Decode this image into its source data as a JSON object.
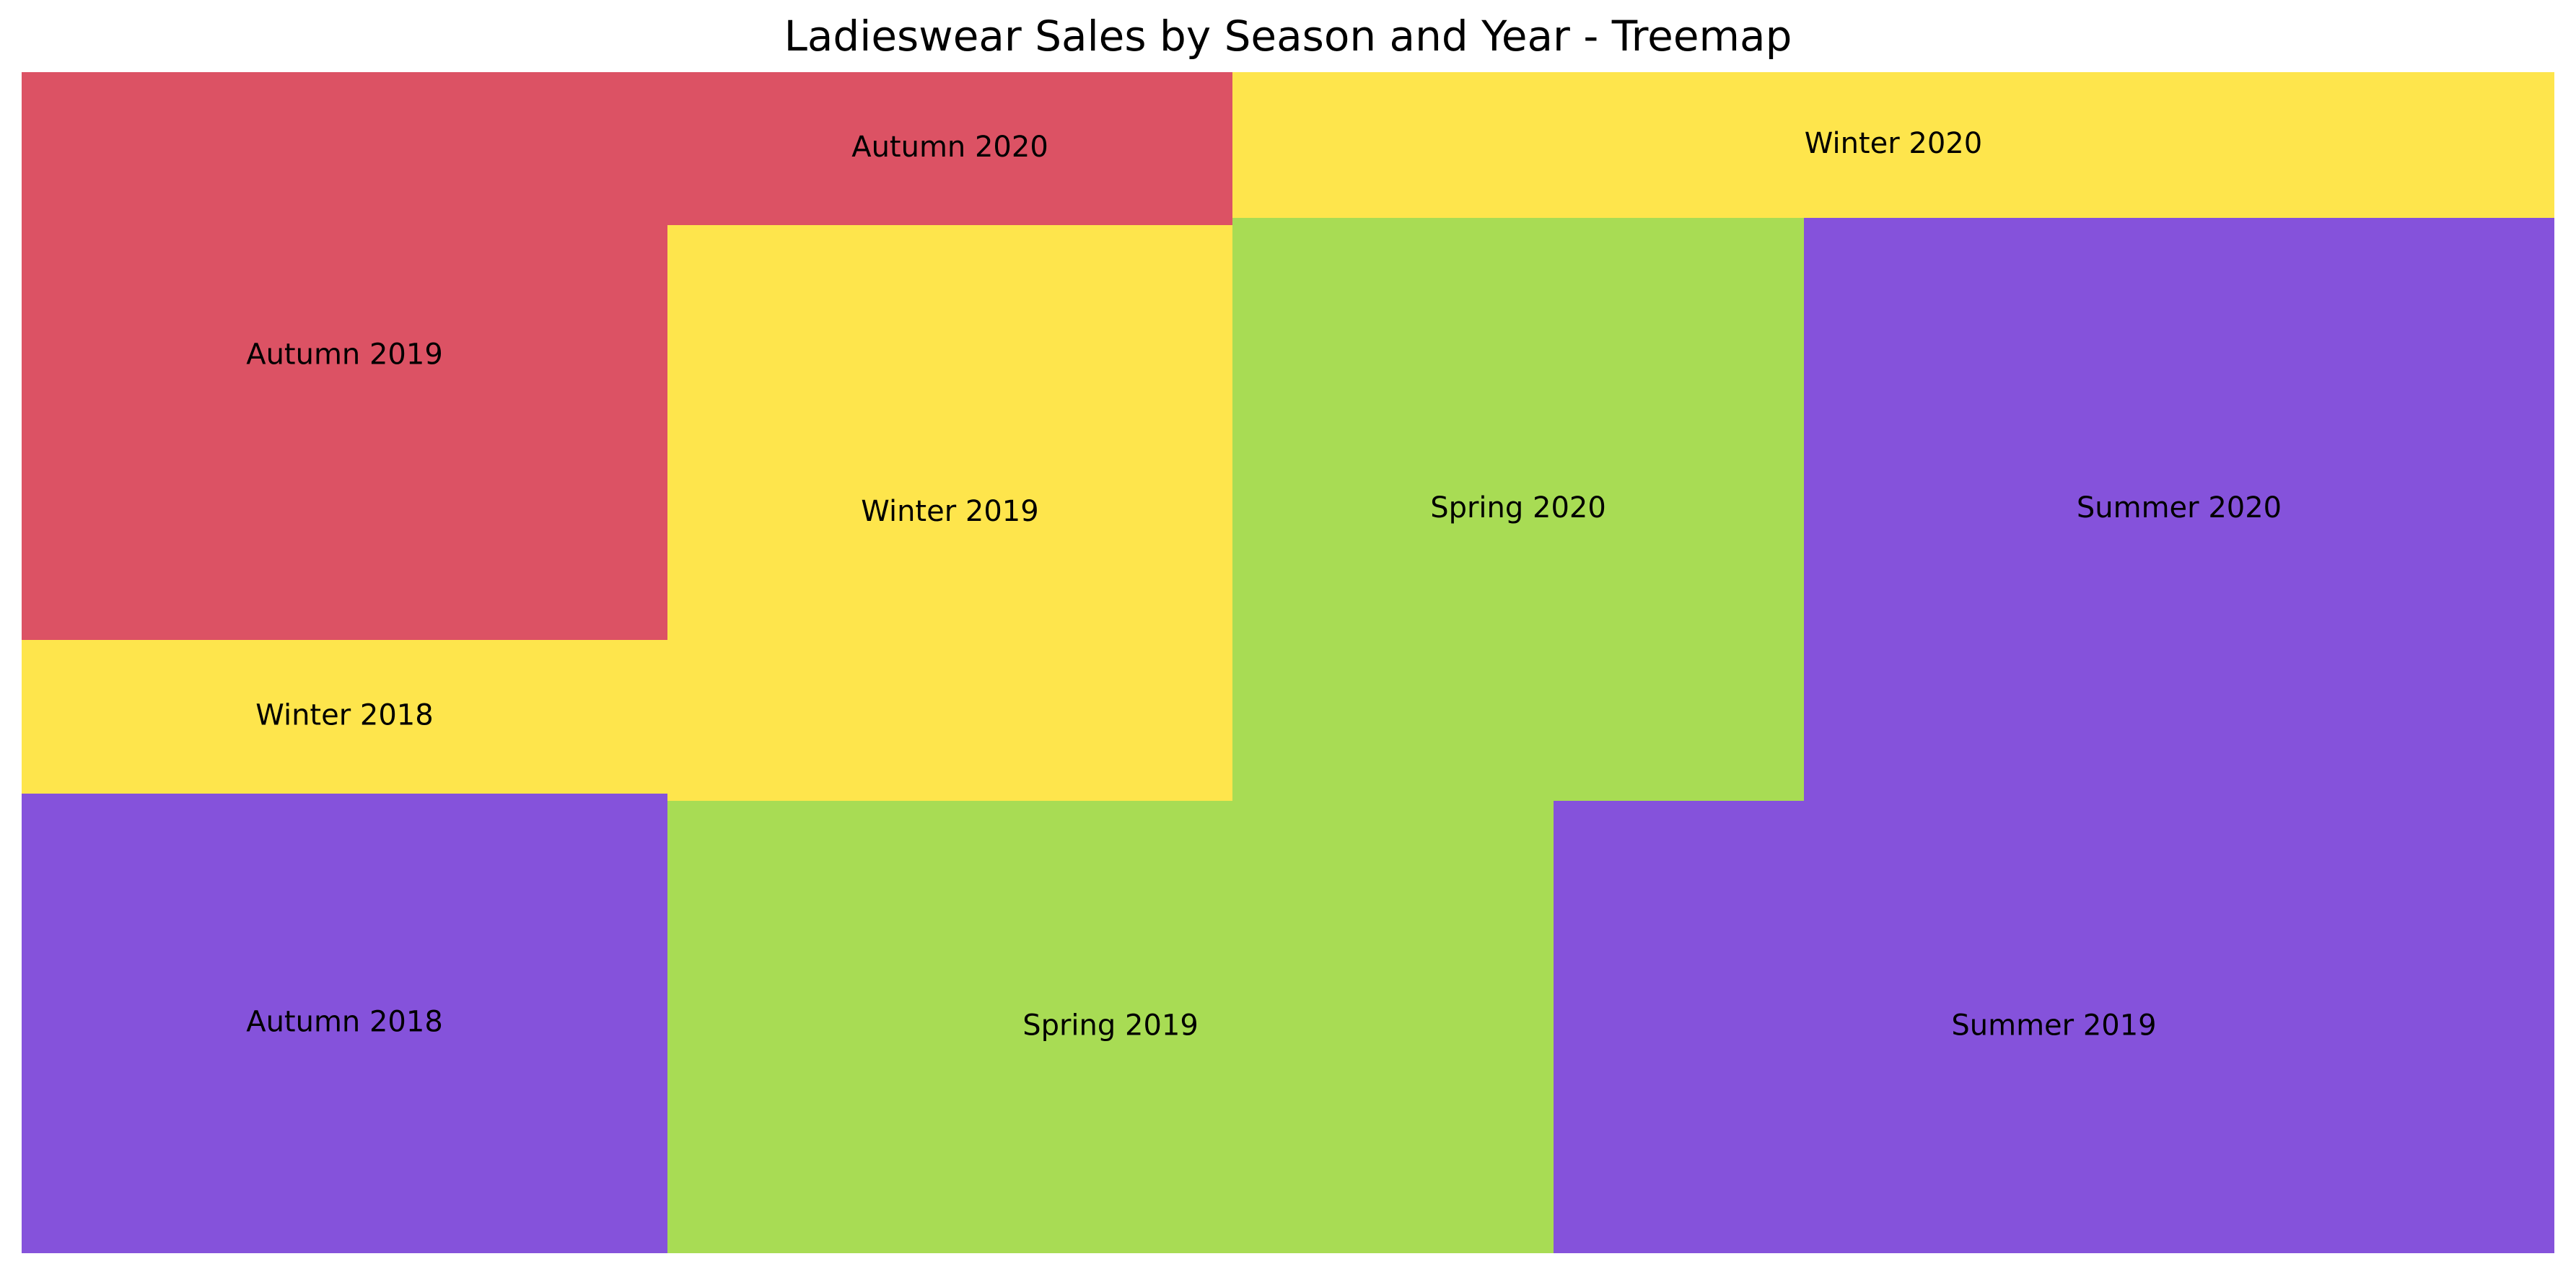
{
  "chart_data": {
    "type": "treemap",
    "title": "Ladieswear Sales by Season and Year - Treemap",
    "cells": [
      {
        "label": "Autumn 2018",
        "color": "#8552DB"
      },
      {
        "label": "Winter 2018",
        "color": "#FEE54C"
      },
      {
        "label": "Autumn 2019",
        "color": "#DC5264"
      },
      {
        "label": "Spring 2019",
        "color": "#A8DC54"
      },
      {
        "label": "Winter 2019",
        "color": "#FEE54C"
      },
      {
        "label": "Autumn 2020",
        "color": "#DC5264"
      },
      {
        "label": "Summer 2019",
        "color": "#8552DB"
      },
      {
        "label": "Spring 2020",
        "color": "#A8DC54"
      },
      {
        "label": "Summer 2020",
        "color": "#8552DB"
      },
      {
        "label": "Winter 2020",
        "color": "#FEE54C"
      }
    ]
  }
}
